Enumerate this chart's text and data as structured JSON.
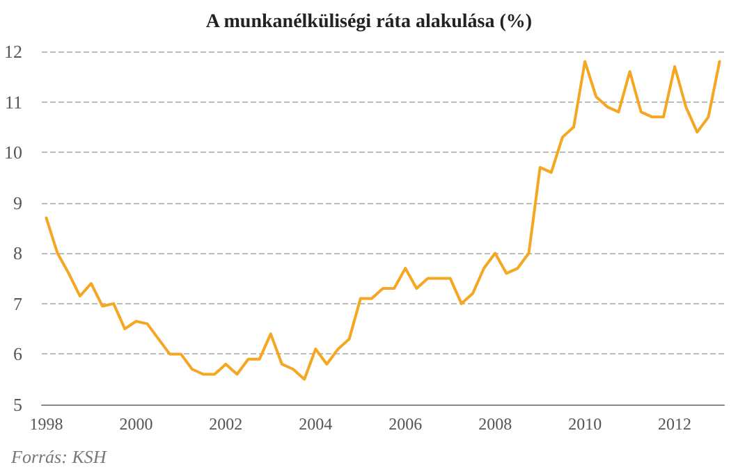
{
  "chart_data": {
    "type": "line",
    "title": "A munkanélküliségi ráta alakulása (%)",
    "x": [
      1998,
      1998.25,
      1998.5,
      1998.75,
      1999,
      1999.25,
      1999.5,
      1999.75,
      2000,
      2000.25,
      2000.5,
      2000.75,
      2001,
      2001.25,
      2001.5,
      2001.75,
      2002,
      2002.25,
      2002.5,
      2002.75,
      2003,
      2003.25,
      2003.5,
      2003.75,
      2004,
      2004.25,
      2004.5,
      2004.75,
      2005,
      2005.25,
      2005.5,
      2005.75,
      2006,
      2006.25,
      2006.5,
      2006.75,
      2007,
      2007.25,
      2007.5,
      2007.75,
      2008,
      2008.25,
      2008.5,
      2008.75,
      2009,
      2009.25,
      2009.5,
      2009.75,
      2010,
      2010.25,
      2010.5,
      2010.75,
      2011,
      2011.25,
      2011.5,
      2011.75,
      2012,
      2012.25,
      2012.5,
      2012.75,
      2013
    ],
    "series": [
      {
        "color": "#f5a623",
        "values": [
          8.7,
          8.0,
          7.6,
          7.15,
          7.4,
          6.95,
          7.0,
          6.5,
          6.65,
          6.6,
          6.3,
          6.0,
          6.0,
          5.7,
          5.6,
          5.6,
          5.8,
          5.6,
          5.9,
          5.9,
          6.4,
          5.8,
          5.7,
          5.5,
          6.1,
          5.8,
          6.1,
          6.3,
          7.1,
          7.1,
          7.3,
          7.3,
          7.7,
          7.3,
          7.5,
          7.5,
          7.5,
          7.0,
          7.2,
          7.7,
          8.0,
          7.6,
          7.7,
          8.0,
          9.7,
          9.6,
          10.3,
          10.5,
          11.8,
          11.1,
          10.9,
          10.8,
          11.6,
          10.8,
          10.7,
          10.7,
          11.7,
          10.9,
          10.4,
          10.7,
          11.8
        ]
      }
    ],
    "xlim": [
      1997.9,
      2013.1
    ],
    "xticks": [
      1998,
      2000,
      2002,
      2004,
      2006,
      2008,
      2010,
      2012
    ],
    "ylim": [
      5,
      12
    ],
    "yticks": [
      5,
      6,
      7,
      8,
      9,
      10,
      11,
      12
    ],
    "grid": "y",
    "marker": "none",
    "line_style": "solid",
    "annotations": [
      "Forrás: KSH"
    ]
  }
}
